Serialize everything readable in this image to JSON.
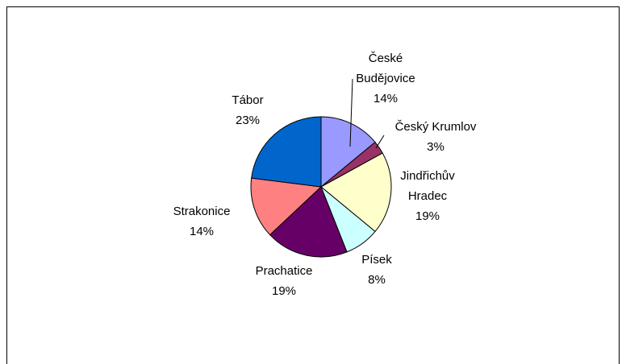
{
  "chart_data": {
    "type": "pie",
    "categories": [
      "České Budějovice",
      "Český Krumlov",
      "Jindřichův Hradec",
      "Písek",
      "Prachatice",
      "Strakonice",
      "Tábor"
    ],
    "values": [
      14,
      3,
      19,
      8,
      19,
      14,
      23
    ],
    "value_labels": [
      "14%",
      "3%",
      "19%",
      "8%",
      "19%",
      "14%",
      "23%"
    ],
    "colors": [
      "#9999ff",
      "#993366",
      "#ffffcc",
      "#ccffff",
      "#660066",
      "#ff8080",
      "#0066cc"
    ]
  }
}
